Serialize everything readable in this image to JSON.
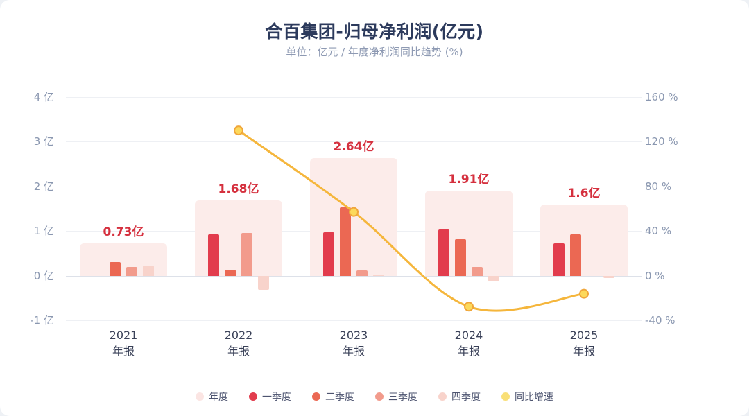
{
  "header": {
    "title": "合百集团-归母净利润(亿元)",
    "subtitle": "单位：亿元 / 年度净利润同比趋势 (%)"
  },
  "chart_data": {
    "type": "bar",
    "title": "合百集团-归母净利润(亿元)",
    "subtitle": "单位：亿元 / 年度净利润同比趋势 (%)",
    "categories": [
      "2021 年报",
      "2022 年报",
      "2023 年报",
      "2024 年报",
      "2025 年报"
    ],
    "annual": {
      "name": "年度",
      "values": [
        0.73,
        1.68,
        2.64,
        1.91,
        1.6
      ],
      "labels": [
        "0.73亿",
        "1.68亿",
        "2.64亿",
        "1.91亿",
        "1.6亿"
      ],
      "color": "#fcecea"
    },
    "series": [
      {
        "name": "一季度",
        "color": "#e23c4d",
        "values": [
          null,
          0.92,
          0.97,
          1.04,
          0.73
        ]
      },
      {
        "name": "二季度",
        "color": "#eb6853",
        "values": [
          0.31,
          0.13,
          1.53,
          0.81,
          0.92
        ]
      },
      {
        "name": "三季度",
        "color": "#f29b8c",
        "values": [
          0.19,
          0.95,
          0.12,
          0.19,
          null
        ]
      },
      {
        "name": "四季度",
        "color": "#f8d3cb",
        "values": [
          0.23,
          -0.32,
          0.02,
          -0.13,
          -0.05
        ]
      }
    ],
    "line": {
      "name": "同比增速",
      "color": "#f5b63c",
      "point_fill": "#fcd95c",
      "point_stroke": "#f0a63b",
      "values": [
        null,
        130.1,
        57.1,
        -27.7,
        -16.2
      ]
    },
    "left_axis": {
      "unit": "亿",
      "ticks": [
        "4 亿",
        "3 亿",
        "2 亿",
        "1 亿",
        "0 亿",
        "-1 亿"
      ],
      "values": [
        4,
        3,
        2,
        1,
        0,
        -1
      ],
      "min": -1,
      "max": 4
    },
    "right_axis": {
      "unit": "%",
      "ticks": [
        "160 %",
        "120 %",
        "80 %",
        "40 %",
        "0 %",
        "-40 %"
      ],
      "values": [
        160,
        120,
        80,
        40,
        0,
        -40
      ],
      "min": -40,
      "max": 160
    },
    "grid": true,
    "legend_position": "bottom"
  },
  "legend": {
    "items": [
      {
        "label": "年度",
        "color": "#fbe5e3"
      },
      {
        "label": "一季度",
        "color": "#e23c4d"
      },
      {
        "label": "二季度",
        "color": "#eb6853"
      },
      {
        "label": "三季度",
        "color": "#f29b8c"
      },
      {
        "label": "四季度",
        "color": "#f8d3cb"
      },
      {
        "label": "同比增速",
        "color": "#f9df76"
      }
    ]
  }
}
